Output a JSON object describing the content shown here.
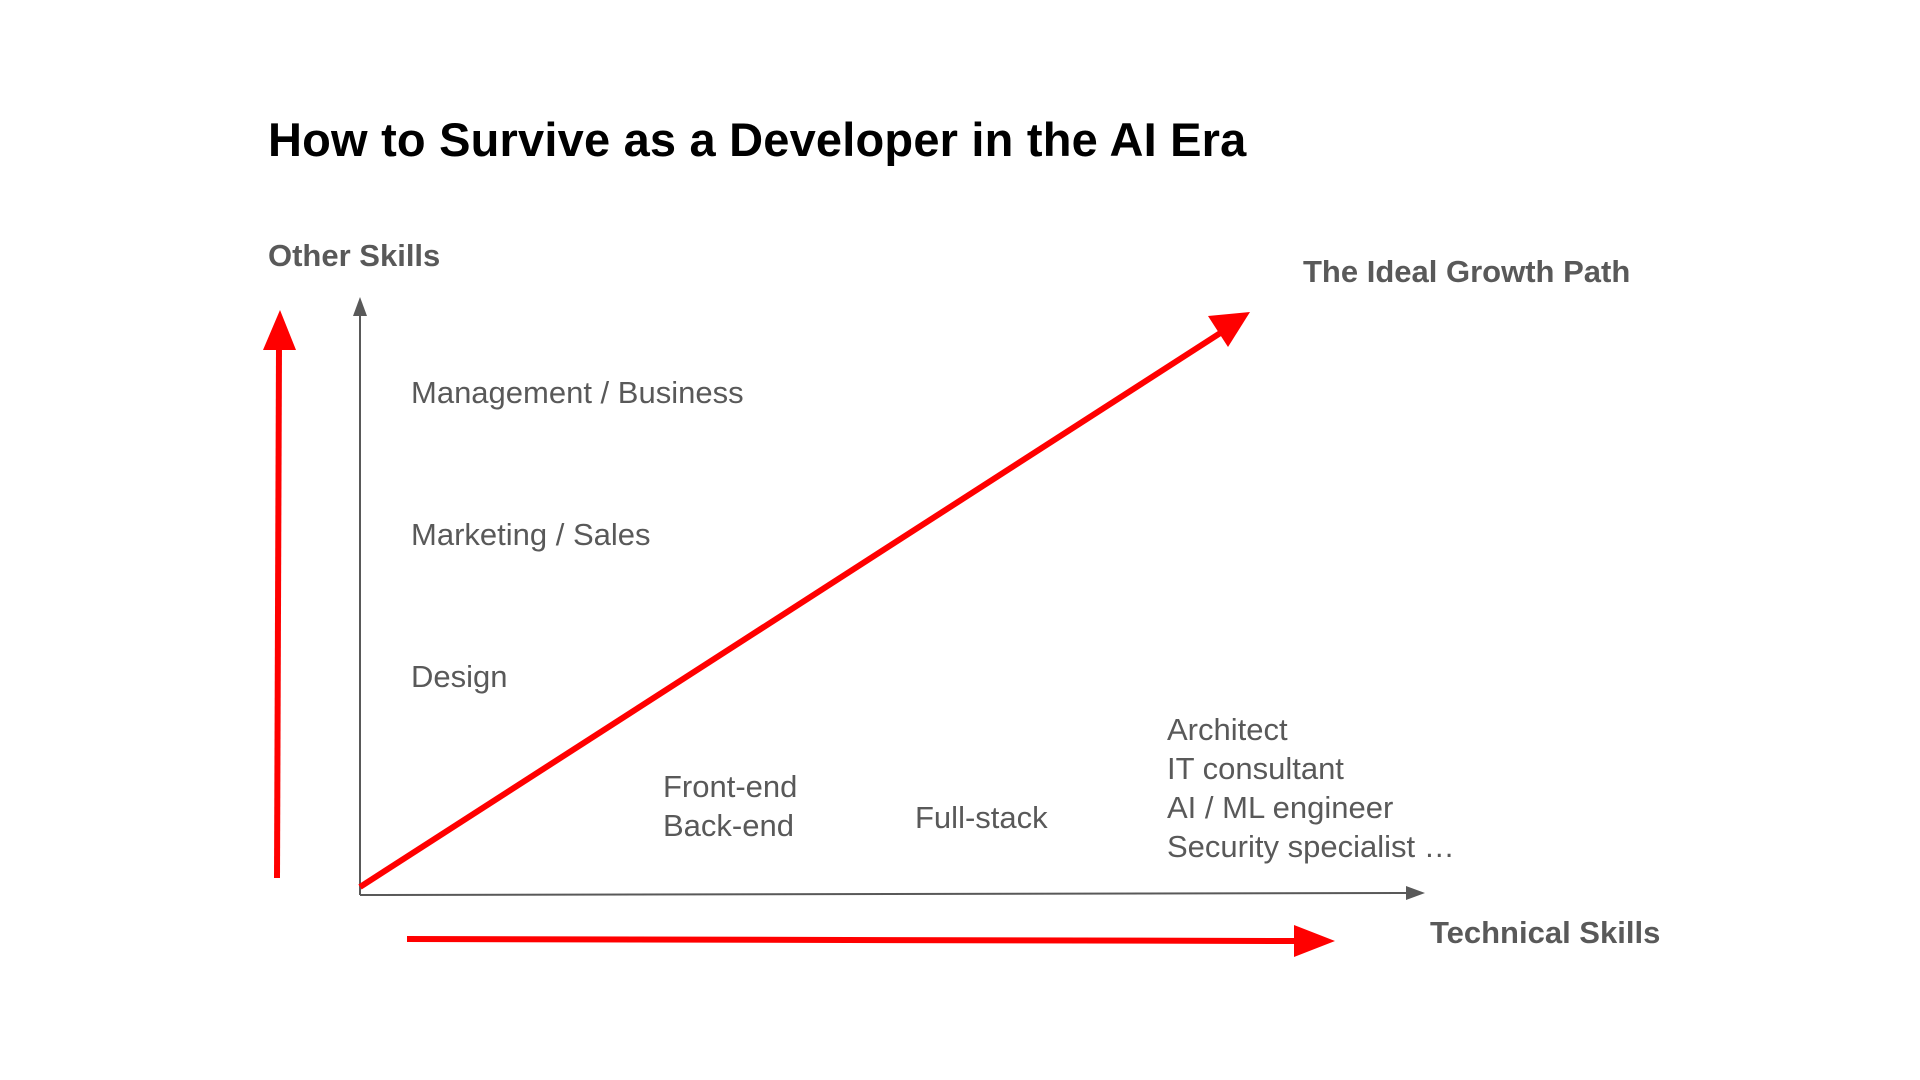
{
  "title": "How to Survive as a Developer in the AI Era",
  "axes": {
    "y_label": "Other Skills",
    "x_label": "Technical Skills"
  },
  "ideal_path_label": "The Ideal Growth Path",
  "other_skills": {
    "management": "Management / Business",
    "marketing": "Marketing / Sales",
    "design": "Design"
  },
  "technical_roles": {
    "front_back": [
      "Front-end",
      "Back-end"
    ],
    "full_stack": "Full-stack",
    "advanced": [
      "Architect",
      "IT consultant",
      "AI / ML engineer",
      "Security specialist …"
    ]
  },
  "colors": {
    "arrow_red": "#ff0000",
    "axis_gray": "#595959",
    "text_gray": "#595959",
    "title": "#000000"
  }
}
